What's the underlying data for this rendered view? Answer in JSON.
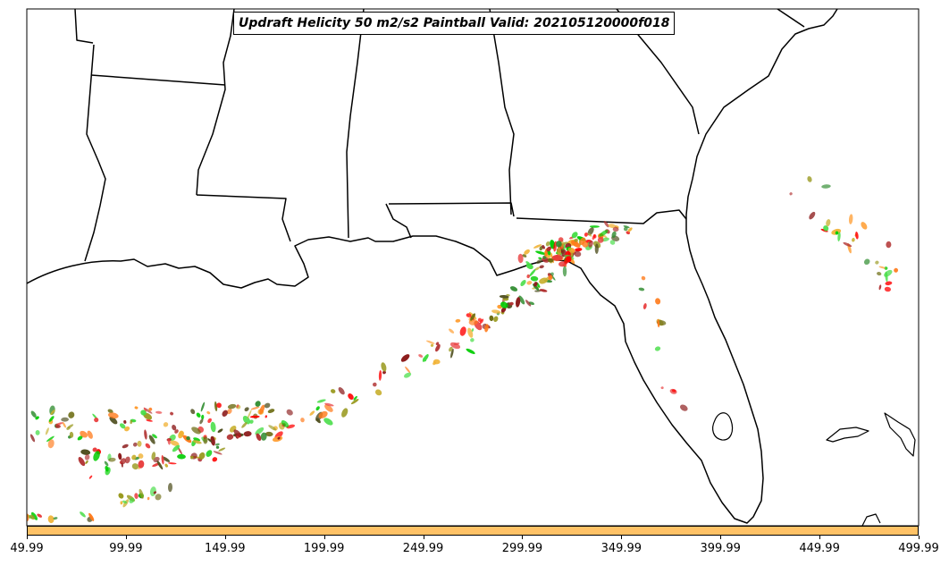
{
  "map": {
    "title": "Updraft Helicity 50 m2/s2 Paintball Valid: 202105120000f018",
    "region": "US Gulf Coast and Florida",
    "colorbar": {
      "color": "#ffc266",
      "tick_labels": [
        "49.99",
        "99.99",
        "149.99",
        "199.99",
        "249.99",
        "299.99",
        "349.99",
        "399.99",
        "449.99",
        "499.99"
      ]
    },
    "paintball_colors": [
      "#ff0000",
      "#e83a3a",
      "#ff7a1a",
      "#ff9a2a",
      "#f0b030",
      "#c8b030",
      "#9a9a20",
      "#6b6b10",
      "#00cc00",
      "#44dd44",
      "#2e8b2e",
      "#8b1a1a",
      "#b03030",
      "#505020"
    ]
  }
}
